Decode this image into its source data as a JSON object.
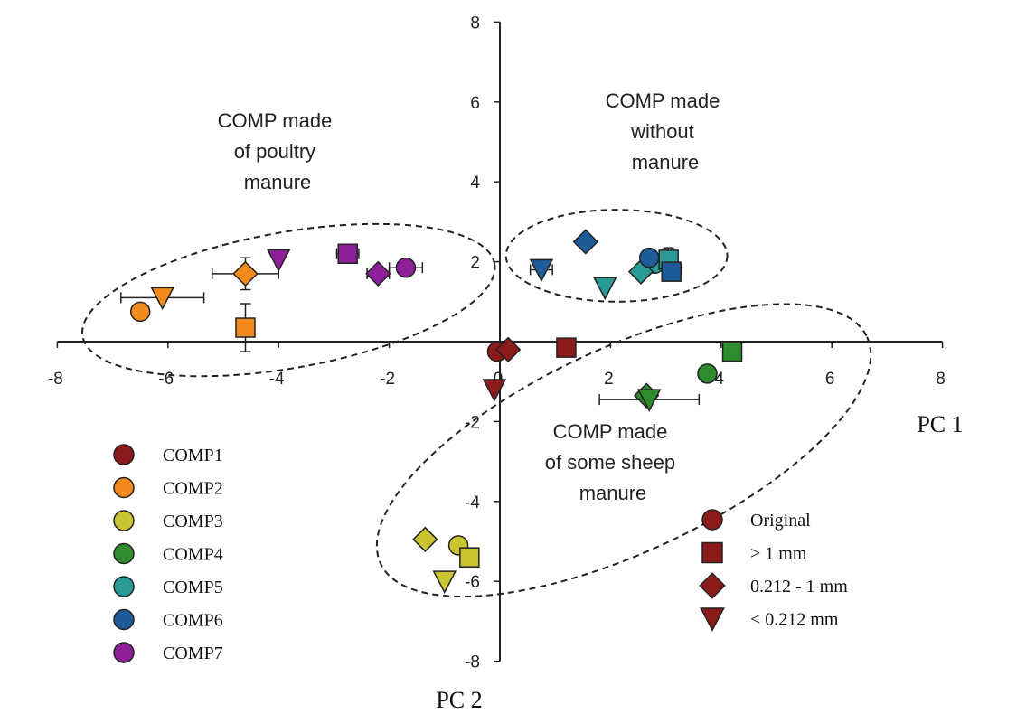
{
  "chart_data": {
    "type": "scatter",
    "title": "",
    "xlabel": "PC 1",
    "ylabel": "PC 2",
    "xlim": [
      -8,
      8
    ],
    "ylim": [
      -8,
      8
    ],
    "x_ticks": [
      -8,
      -6,
      -4,
      -2,
      0,
      2,
      4,
      6,
      8
    ],
    "y_ticks": [
      -8,
      -6,
      -4,
      -2,
      0,
      2,
      4,
      6,
      8
    ],
    "grid": false,
    "x_tick_labels": [
      "-8",
      "-6",
      "-4",
      "-2",
      "0",
      "2",
      "4",
      "6",
      "8"
    ],
    "y_tick_labels": [
      "-8",
      "-6",
      "-4",
      "-2",
      "0",
      "2",
      "4",
      "6",
      "8"
    ],
    "annotations": [
      {
        "lines": [
          "COMP made",
          "of poultry",
          "manure"
        ]
      },
      {
        "lines": [
          "COMP made",
          "without",
          "manure"
        ]
      },
      {
        "lines": [
          "COMP made",
          "of some sheep",
          "manure"
        ]
      }
    ],
    "compost_legend": [
      {
        "label": "COMP1",
        "color": "#8b1a1a"
      },
      {
        "label": "COMP2",
        "color": "#f28a1e"
      },
      {
        "label": "COMP3",
        "color": "#c9c430"
      },
      {
        "label": "COMP4",
        "color": "#2e8b2e"
      },
      {
        "label": "COMP5",
        "color": "#2a9a96"
      },
      {
        "label": "COMP6",
        "color": "#1f5a99"
      },
      {
        "label": "COMP7",
        "color": "#8e1f99"
      }
    ],
    "fraction_legend": [
      {
        "label": "Original",
        "marker": "circle"
      },
      {
        "label": "> 1 mm",
        "marker": "square"
      },
      {
        "label": "0.212 - 1 mm",
        "marker": "diamond"
      },
      {
        "label": "< 0.212 mm",
        "marker": "triangle"
      }
    ],
    "series": [
      {
        "compost": "COMP1",
        "fraction": "Original",
        "x": -0.05,
        "y": -0.25
      },
      {
        "compost": "COMP1",
        "fraction": "> 1 mm",
        "x": 1.2,
        "y": -0.15
      },
      {
        "compost": "COMP1",
        "fraction": "0.212 - 1 mm",
        "x": 0.15,
        "y": -0.2
      },
      {
        "compost": "COMP1",
        "fraction": "< 0.212 mm",
        "x": -0.1,
        "y": -1.2
      },
      {
        "compost": "COMP2",
        "fraction": "Original",
        "x": -6.5,
        "y": 0.75
      },
      {
        "compost": "COMP2",
        "fraction": "> 1 mm",
        "x": -4.6,
        "y": 0.35,
        "yerr": 0.6
      },
      {
        "compost": "COMP2",
        "fraction": "0.212 - 1 mm",
        "x": -4.6,
        "y": 1.7,
        "xerr": 0.6,
        "yerr": 0.4
      },
      {
        "compost": "COMP2",
        "fraction": "< 0.212 mm",
        "x": -6.1,
        "y": 1.1,
        "xerr": 0.75
      },
      {
        "compost": "COMP3",
        "fraction": "Original",
        "x": -0.75,
        "y": -5.1
      },
      {
        "compost": "COMP3",
        "fraction": "> 1 mm",
        "x": -0.55,
        "y": -5.4
      },
      {
        "compost": "COMP3",
        "fraction": "0.212 - 1 mm",
        "x": -1.35,
        "y": -4.95
      },
      {
        "compost": "COMP3",
        "fraction": "< 0.212 mm",
        "x": -1.0,
        "y": -6.0
      },
      {
        "compost": "COMP4",
        "fraction": "Original",
        "x": 3.75,
        "y": -0.8
      },
      {
        "compost": "COMP4",
        "fraction": "> 1 mm",
        "x": 4.2,
        "y": -0.25
      },
      {
        "compost": "COMP4",
        "fraction": "0.212 - 1 mm",
        "x": 2.65,
        "y": -1.35
      },
      {
        "compost": "COMP4",
        "fraction": "< 0.212 mm",
        "x": 2.7,
        "y": -1.45,
        "xerr": 0.9
      },
      {
        "compost": "COMP5",
        "fraction": "Original",
        "x": 2.8,
        "y": 1.95
      },
      {
        "compost": "COMP5",
        "fraction": "> 1 mm",
        "x": 3.05,
        "y": 2.05,
        "yerr": 0.3
      },
      {
        "compost": "COMP5",
        "fraction": "0.212 - 1 mm",
        "x": 2.55,
        "y": 1.75
      },
      {
        "compost": "COMP5",
        "fraction": "< 0.212 mm",
        "x": 1.9,
        "y": 1.35
      },
      {
        "compost": "COMP6",
        "fraction": "Original",
        "x": 2.7,
        "y": 2.1
      },
      {
        "compost": "COMP6",
        "fraction": "> 1 mm",
        "x": 3.1,
        "y": 1.75
      },
      {
        "compost": "COMP6",
        "fraction": "0.212 - 1 mm",
        "x": 1.55,
        "y": 2.5
      },
      {
        "compost": "COMP6",
        "fraction": "< 0.212 mm",
        "x": 0.75,
        "y": 1.8,
        "xerr": 0.2
      },
      {
        "compost": "COMP7",
        "fraction": "Original",
        "x": -1.7,
        "y": 1.85,
        "xerr": 0.3
      },
      {
        "compost": "COMP7",
        "fraction": "> 1 mm",
        "x": -2.75,
        "y": 2.2,
        "xerr": 0.2
      },
      {
        "compost": "COMP7",
        "fraction": "0.212 - 1 mm",
        "x": -2.2,
        "y": 1.7,
        "xerr": 0.2
      },
      {
        "compost": "COMP7",
        "fraction": "< 0.212 mm",
        "x": -4.0,
        "y": 2.05
      }
    ],
    "clusters": [
      {
        "name": "poultry",
        "cx": -3.82,
        "cy": 1.04,
        "rx": 3.78,
        "ry": 1.7,
        "rotation": -10
      },
      {
        "name": "no-manure",
        "cx": 2.11,
        "cy": 2.15,
        "rx": 2.0,
        "ry": 1.15,
        "rotation": 0
      },
      {
        "name": "sheep",
        "cx": 2.24,
        "cy": -2.72,
        "rx": 4.85,
        "ry": 2.55,
        "rotation": -25
      }
    ]
  }
}
